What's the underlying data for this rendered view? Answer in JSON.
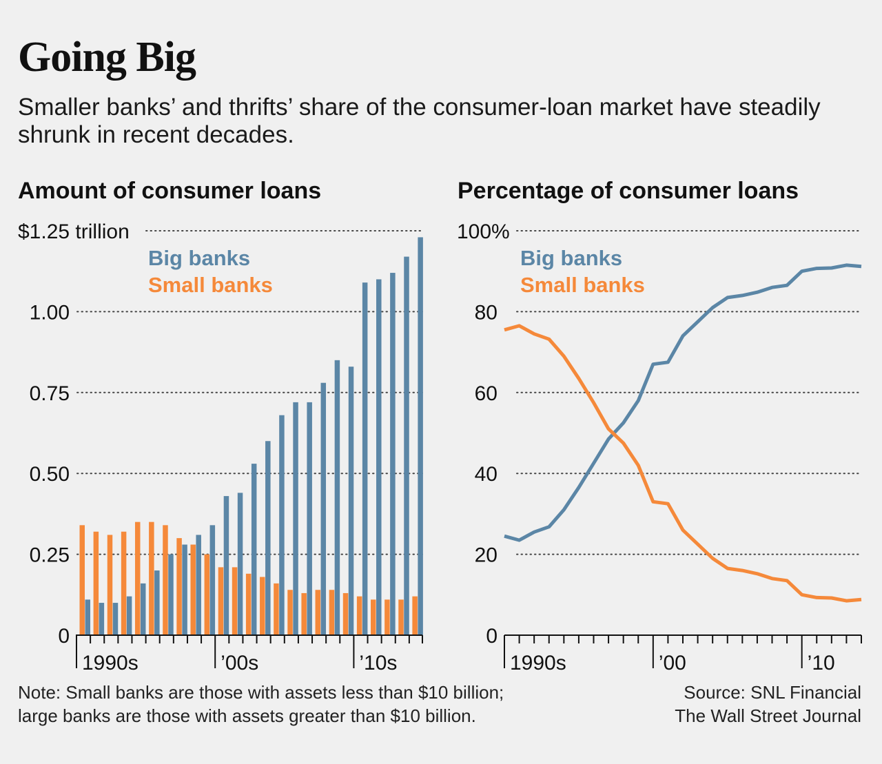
{
  "header": {
    "title": "Going Big",
    "subtitle": "Smaller banks’ and thrifts’ share of the consumer-loan market have steadily shrunk in recent decades."
  },
  "footer": {
    "note_lines": [
      "Note: Small banks are those with assets less than $10 billion;",
      "large banks are those with assets greater than $10 billion."
    ],
    "source_lines": [
      "Source: SNL Financial",
      "The Wall Street Journal"
    ]
  },
  "colors": {
    "big_banks": "#5b86a6",
    "small_banks": "#f5893a",
    "text": "#111111",
    "background": "#f0f0f0"
  },
  "chart_data": [
    {
      "type": "bar",
      "title": "Amount of consumer loans",
      "unit": "trillion",
      "ylim": [
        0,
        1.25
      ],
      "yticks": [
        0,
        0.25,
        0.5,
        0.75,
        1.0,
        1.25
      ],
      "ytick_labels": [
        "0",
        "0.25",
        "0.50",
        "0.75",
        "1.00",
        "$1.25 trillion"
      ],
      "grid": true,
      "legend_position": "top-left",
      "x": [
        1990,
        1991,
        1992,
        1993,
        1994,
        1995,
        1996,
        1997,
        1998,
        1999,
        2000,
        2001,
        2002,
        2003,
        2004,
        2005,
        2006,
        2007,
        2008,
        2009,
        2010,
        2011,
        2012,
        2013,
        2014
      ],
      "xtick_labels": [
        {
          "x": 1990,
          "label": "1990s"
        },
        {
          "x": 2000,
          "label": "’00s"
        },
        {
          "x": 2010,
          "label": "’10s"
        }
      ],
      "series": [
        {
          "name": "Small banks",
          "color": "#f5893a",
          "values": [
            0.34,
            0.32,
            0.31,
            0.32,
            0.35,
            0.35,
            0.34,
            0.3,
            0.28,
            0.25,
            0.21,
            0.21,
            0.19,
            0.18,
            0.16,
            0.14,
            0.13,
            0.14,
            0.14,
            0.13,
            0.12,
            0.11,
            0.11,
            0.11,
            0.12
          ]
        },
        {
          "name": "Big banks",
          "color": "#5b86a6",
          "values": [
            0.11,
            0.1,
            0.1,
            0.12,
            0.16,
            0.2,
            0.25,
            0.28,
            0.31,
            0.34,
            0.43,
            0.44,
            0.53,
            0.6,
            0.68,
            0.72,
            0.72,
            0.78,
            0.85,
            0.83,
            1.09,
            1.1,
            1.12,
            1.17,
            1.23
          ]
        }
      ]
    },
    {
      "type": "line",
      "title": "Percentage of consumer loans",
      "ylim": [
        0,
        100
      ],
      "yticks": [
        0,
        20,
        40,
        60,
        80,
        100
      ],
      "ytick_labels": [
        "0",
        "20",
        "40",
        "60",
        "80",
        "100%"
      ],
      "grid": true,
      "legend_position": "top-left",
      "xlim": [
        1990,
        2014
      ],
      "xtick_labels": [
        {
          "x": 1990,
          "label": "1990s"
        },
        {
          "x": 2000,
          "label": "’00"
        },
        {
          "x": 2010,
          "label": "’10"
        }
      ],
      "series": [
        {
          "name": "Big banks",
          "color": "#5b86a6",
          "x": [
            1990,
            1991,
            1992,
            1993,
            1994,
            1995,
            1996,
            1997,
            1998,
            1999,
            2000,
            2001,
            2002,
            2003,
            2004,
            2005,
            2006,
            2007,
            2008,
            2009,
            2010,
            2011,
            2012,
            2013,
            2014
          ],
          "values": [
            24.5,
            23.5,
            25.5,
            26.8,
            31,
            36.5,
            42.5,
            48.5,
            52.5,
            58,
            67,
            67.5,
            74,
            77.5,
            81,
            83.5,
            84,
            84.8,
            86,
            86.5,
            90,
            90.7,
            90.8,
            91.5,
            91.2
          ]
        },
        {
          "name": "Small banks",
          "color": "#f5893a",
          "x": [
            1990,
            1991,
            1992,
            1993,
            1994,
            1995,
            1996,
            1997,
            1998,
            1999,
            2000,
            2001,
            2002,
            2003,
            2004,
            2005,
            2006,
            2007,
            2008,
            2009,
            2010,
            2011,
            2012,
            2013,
            2014
          ],
          "values": [
            75.5,
            76.5,
            74.5,
            73.2,
            69,
            63.5,
            57.5,
            51,
            47.5,
            42,
            33,
            32.5,
            26,
            22.5,
            19,
            16.5,
            16,
            15.2,
            14,
            13.5,
            10,
            9.3,
            9.2,
            8.5,
            8.8
          ]
        }
      ]
    }
  ]
}
